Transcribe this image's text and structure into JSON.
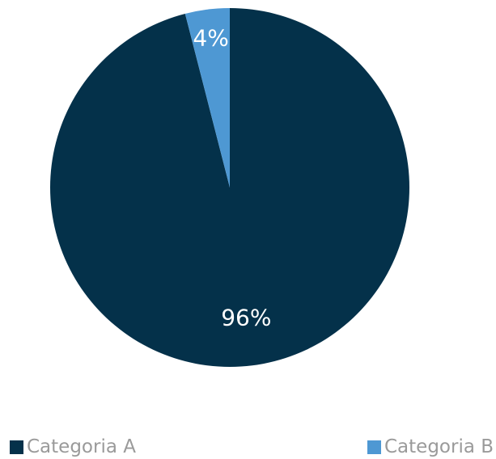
{
  "chart_data": {
    "type": "pie",
    "categories": [
      "Categoria A",
      "Categoria B"
    ],
    "values": [
      96,
      4
    ],
    "labels": [
      "96%",
      "4%"
    ],
    "colors": [
      "#04314A",
      "#4E98D3"
    ],
    "title": "",
    "legend_position": "bottom"
  },
  "legend": {
    "items": [
      {
        "label": "Categoria A",
        "color": "#04314A"
      },
      {
        "label": "Categoria B",
        "color": "#4E98D3"
      }
    ]
  }
}
